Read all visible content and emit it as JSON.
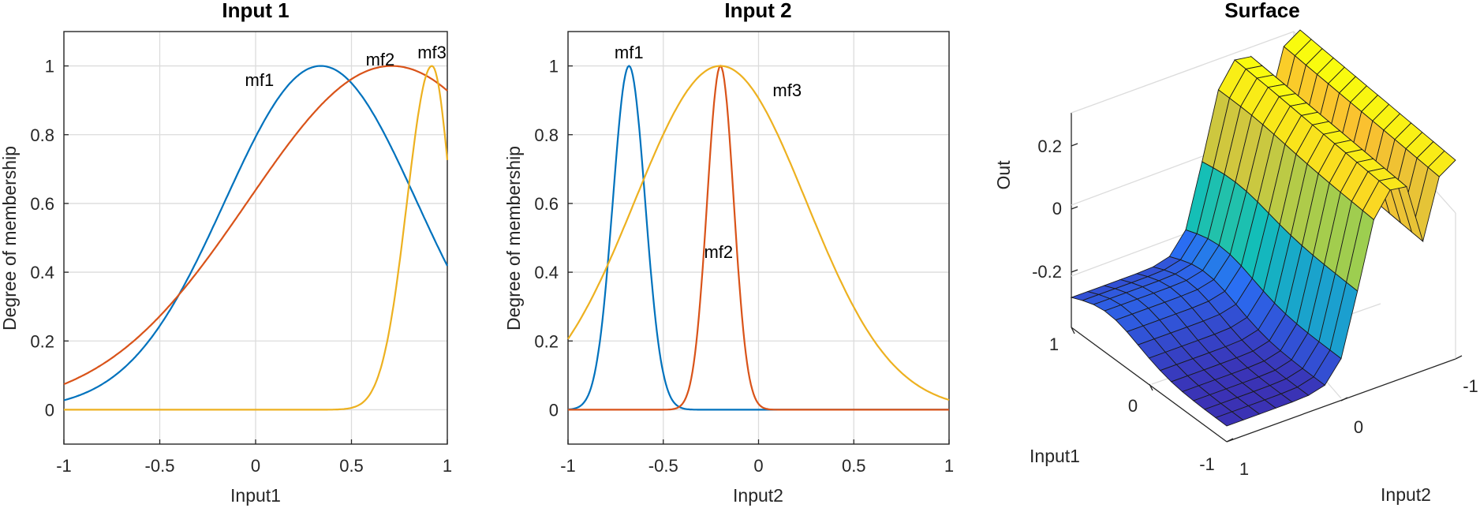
{
  "colors": {
    "c1": "#0072BD",
    "c2": "#D95319",
    "c3": "#EDB120"
  },
  "chart_data": [
    {
      "type": "line",
      "title": "Input 1",
      "xlabel": "Input1",
      "ylabel": "Degree of membership",
      "xlim": [
        -1,
        1
      ],
      "ylim": [
        -0.1,
        1.1
      ],
      "xticks": [
        -1,
        -0.5,
        0,
        0.5,
        1
      ],
      "xtick_labels": [
        "-1",
        "-0.5",
        "0",
        "0.5",
        "1"
      ],
      "yticks": [
        0,
        0.2,
        0.4,
        0.6,
        0.8,
        1
      ],
      "ytick_labels": [
        "0",
        "0.2",
        "0.4",
        "0.6",
        "0.8",
        "1"
      ],
      "grid": true,
      "series": [
        {
          "name": "mf1",
          "kind": "gauss",
          "center": 0.34,
          "sigma": 0.5,
          "color": "c1",
          "label_at": [
            0.02,
            0.96
          ]
        },
        {
          "name": "mf2",
          "kind": "gauss",
          "center": 0.71,
          "sigma": 0.75,
          "color": "c2",
          "label_at": [
            0.65,
            1.02
          ]
        },
        {
          "name": "mf3",
          "kind": "gauss2",
          "center": 0.92,
          "sigma_left": 0.13,
          "sigma_right": 0.1,
          "color": "c3",
          "label_at": [
            0.92,
            1.04
          ]
        }
      ]
    },
    {
      "type": "line",
      "title": "Input 2",
      "xlabel": "Input2",
      "ylabel": "Degree of membership",
      "xlim": [
        -1,
        1
      ],
      "ylim": [
        -0.1,
        1.1
      ],
      "xticks": [
        -1,
        -0.5,
        0,
        0.5,
        1
      ],
      "xtick_labels": [
        "-1",
        "-0.5",
        "0",
        "0.5",
        "1"
      ],
      "yticks": [
        0,
        0.2,
        0.4,
        0.6,
        0.8,
        1
      ],
      "ytick_labels": [
        "0",
        "0.2",
        "0.4",
        "0.6",
        "0.8",
        "1"
      ],
      "grid": true,
      "series": [
        {
          "name": "mf1",
          "kind": "gauss",
          "center": -0.68,
          "sigma": 0.085,
          "color": "c1",
          "label_at": [
            -0.68,
            1.04
          ]
        },
        {
          "name": "mf2",
          "kind": "gauss",
          "center": -0.2,
          "sigma": 0.07,
          "color": "c2",
          "label_at": [
            -0.21,
            0.46
          ]
        },
        {
          "name": "mf3",
          "kind": "gauss",
          "center": -0.2,
          "sigma": 0.45,
          "color": "c3",
          "label_at": [
            0.15,
            0.93
          ]
        }
      ]
    },
    {
      "type": "surface",
      "title": "Surface",
      "xlabel": "Input1",
      "ylabel": "Input2",
      "zlabel": "Out",
      "xticks": [
        "1",
        "0",
        "-1"
      ],
      "yticks": [
        "1",
        "0",
        "-1"
      ],
      "zticks": [
        "0.2",
        "0",
        "-0.2"
      ],
      "colormap": [
        "#3E26A8",
        "#2A6EF3",
        "#12BEB9",
        "#7FD25A",
        "#FAC130",
        "#F9FB0E"
      ]
    }
  ]
}
